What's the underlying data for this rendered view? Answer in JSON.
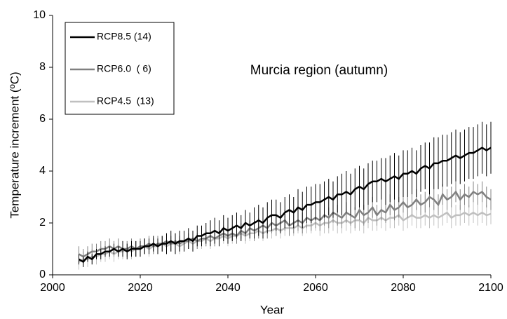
{
  "chart_data": {
    "type": "line",
    "annotation": "Murcia region (autumn)",
    "x_label": "Year",
    "y_label": "Temperature increment (ºC)",
    "xlim": [
      2000,
      2100
    ],
    "xticks": [
      2000,
      2020,
      2040,
      2060,
      2080,
      2100
    ],
    "ylim": [
      0,
      10
    ],
    "yticks": [
      0,
      2,
      4,
      6,
      8,
      10
    ],
    "legend": "top-left",
    "x": [
      2006,
      2007,
      2008,
      2009,
      2010,
      2011,
      2012,
      2013,
      2014,
      2015,
      2016,
      2017,
      2018,
      2019,
      2020,
      2021,
      2022,
      2023,
      2024,
      2025,
      2026,
      2027,
      2028,
      2029,
      2030,
      2031,
      2032,
      2033,
      2034,
      2035,
      2036,
      2037,
      2038,
      2039,
      2040,
      2041,
      2042,
      2043,
      2044,
      2045,
      2046,
      2047,
      2048,
      2049,
      2050,
      2051,
      2052,
      2053,
      2054,
      2055,
      2056,
      2057,
      2058,
      2059,
      2060,
      2061,
      2062,
      2063,
      2064,
      2065,
      2066,
      2067,
      2068,
      2069,
      2070,
      2071,
      2072,
      2073,
      2074,
      2075,
      2076,
      2077,
      2078,
      2079,
      2080,
      2081,
      2082,
      2083,
      2084,
      2085,
      2086,
      2087,
      2088,
      2089,
      2090,
      2091,
      2092,
      2093,
      2094,
      2095,
      2096,
      2097,
      2098,
      2099,
      2100
    ],
    "series": [
      {
        "name": "RCP8.5 (14)",
        "color": "#000000",
        "values": [
          0.6,
          0.5,
          0.7,
          0.6,
          0.8,
          0.8,
          0.9,
          0.9,
          1.0,
          0.9,
          1.0,
          0.9,
          1.0,
          1.0,
          1.0,
          1.1,
          1.1,
          1.2,
          1.1,
          1.2,
          1.2,
          1.3,
          1.2,
          1.3,
          1.3,
          1.4,
          1.3,
          1.5,
          1.5,
          1.6,
          1.6,
          1.7,
          1.6,
          1.8,
          1.7,
          1.8,
          1.9,
          1.8,
          2.0,
          1.9,
          2.0,
          2.1,
          2.0,
          2.2,
          2.3,
          2.3,
          2.2,
          2.4,
          2.5,
          2.4,
          2.6,
          2.5,
          2.7,
          2.7,
          2.8,
          2.8,
          2.9,
          3.0,
          2.9,
          3.1,
          3.1,
          3.2,
          3.1,
          3.3,
          3.4,
          3.3,
          3.5,
          3.6,
          3.6,
          3.7,
          3.6,
          3.7,
          3.8,
          3.7,
          3.9,
          3.9,
          4.0,
          3.9,
          4.1,
          4.2,
          4.1,
          4.3,
          4.3,
          4.4,
          4.4,
          4.5,
          4.6,
          4.5,
          4.6,
          4.7,
          4.7,
          4.8,
          4.9,
          4.8,
          4.9
        ],
        "errors": [
          0.2,
          0.2,
          0.2,
          0.2,
          0.2,
          0.2,
          0.2,
          0.2,
          0.2,
          0.2,
          0.3,
          0.3,
          0.3,
          0.3,
          0.3,
          0.3,
          0.3,
          0.3,
          0.3,
          0.3,
          0.4,
          0.4,
          0.4,
          0.4,
          0.4,
          0.4,
          0.4,
          0.4,
          0.4,
          0.4,
          0.5,
          0.5,
          0.5,
          0.5,
          0.5,
          0.5,
          0.5,
          0.5,
          0.5,
          0.5,
          0.6,
          0.6,
          0.6,
          0.6,
          0.6,
          0.6,
          0.6,
          0.6,
          0.6,
          0.6,
          0.7,
          0.7,
          0.7,
          0.7,
          0.7,
          0.7,
          0.7,
          0.7,
          0.7,
          0.7,
          0.8,
          0.8,
          0.8,
          0.8,
          0.8,
          0.8,
          0.8,
          0.8,
          0.8,
          0.8,
          0.9,
          0.9,
          0.9,
          0.9,
          0.9,
          0.9,
          0.9,
          0.9,
          0.9,
          0.9,
          1.0,
          1.0,
          1.0,
          1.0,
          1.0,
          1.0,
          1.0,
          1.0,
          1.0,
          1.0,
          1.0,
          1.0,
          1.0,
          1.0,
          1.0
        ]
      },
      {
        "name": "RCP6.0  ( 6)",
        "color": "#808080",
        "values": [
          0.8,
          0.7,
          0.8,
          0.9,
          0.9,
          1.0,
          1.0,
          1.1,
          1.0,
          1.1,
          1.0,
          1.0,
          1.1,
          1.0,
          1.1,
          1.1,
          1.2,
          1.1,
          1.2,
          1.2,
          1.3,
          1.2,
          1.3,
          1.2,
          1.3,
          1.3,
          1.4,
          1.3,
          1.4,
          1.4,
          1.5,
          1.4,
          1.5,
          1.6,
          1.5,
          1.6,
          1.5,
          1.7,
          1.6,
          1.8,
          1.7,
          1.8,
          1.9,
          1.8,
          2.0,
          1.9,
          2.0,
          2.1,
          1.9,
          2.0,
          2.1,
          2.0,
          2.2,
          2.1,
          2.2,
          2.1,
          2.3,
          2.2,
          2.4,
          2.3,
          2.2,
          2.4,
          2.3,
          2.2,
          2.5,
          2.3,
          2.4,
          2.6,
          2.3,
          2.5,
          2.4,
          2.7,
          2.5,
          2.6,
          2.8,
          2.6,
          2.7,
          2.9,
          2.7,
          2.8,
          3.0,
          2.9,
          2.7,
          3.1,
          2.9,
          3.0,
          3.2,
          2.9,
          3.1,
          3.0,
          3.2,
          3.1,
          3.2,
          3.0,
          2.9
        ],
        "errors": [
          0.3,
          0.3,
          0.3,
          0.3,
          0.3,
          0.3,
          0.3,
          0.3,
          0.3,
          0.3,
          0.3,
          0.3,
          0.3,
          0.3,
          0.3,
          0.3,
          0.3,
          0.3,
          0.3,
          0.3,
          0.3,
          0.3,
          0.3,
          0.3,
          0.3,
          0.3,
          0.3,
          0.3,
          0.3,
          0.3,
          0.3,
          0.3,
          0.3,
          0.3,
          0.3,
          0.3,
          0.3,
          0.3,
          0.3,
          0.3,
          0.4,
          0.4,
          0.4,
          0.4,
          0.4,
          0.4,
          0.4,
          0.4,
          0.4,
          0.4,
          0.4,
          0.4,
          0.4,
          0.4,
          0.4,
          0.4,
          0.4,
          0.4,
          0.4,
          0.4,
          0.4,
          0.4,
          0.4,
          0.4,
          0.4,
          0.4,
          0.4,
          0.4,
          0.4,
          0.4,
          0.4,
          0.4,
          0.4,
          0.4,
          0.4,
          0.4,
          0.4,
          0.4,
          0.4,
          0.4,
          0.4,
          0.4,
          0.4,
          0.4,
          0.4,
          0.4,
          0.4,
          0.4,
          0.4,
          0.4,
          0.4,
          0.4,
          0.4,
          0.4,
          0.4
        ]
      },
      {
        "name": "RCP4.5  (13)",
        "color": "#c0c0c0",
        "values": [
          0.5,
          0.6,
          0.6,
          0.7,
          0.7,
          0.8,
          0.8,
          0.9,
          0.8,
          0.9,
          0.9,
          1.0,
          0.9,
          1.0,
          1.0,
          1.1,
          1.0,
          1.1,
          1.1,
          1.2,
          1.1,
          1.2,
          1.2,
          1.1,
          1.2,
          1.3,
          1.2,
          1.3,
          1.3,
          1.4,
          1.3,
          1.4,
          1.4,
          1.5,
          1.4,
          1.5,
          1.5,
          1.6,
          1.5,
          1.6,
          1.6,
          1.7,
          1.6,
          1.7,
          1.7,
          1.8,
          1.7,
          1.8,
          1.8,
          1.8,
          1.9,
          1.8,
          1.9,
          1.9,
          2.0,
          1.9,
          2.0,
          2.0,
          2.1,
          2.0,
          2.0,
          2.1,
          2.0,
          2.1,
          2.1,
          2.0,
          2.2,
          2.1,
          2.1,
          2.2,
          2.1,
          2.2,
          2.2,
          2.3,
          2.1,
          2.2,
          2.3,
          2.2,
          2.2,
          2.3,
          2.2,
          2.3,
          2.2,
          2.3,
          2.4,
          2.2,
          2.3,
          2.3,
          2.4,
          2.3,
          2.4,
          2.3,
          2.4,
          2.3,
          2.35
        ],
        "errors": [
          0.3,
          0.3,
          0.3,
          0.3,
          0.3,
          0.3,
          0.3,
          0.3,
          0.3,
          0.3,
          0.3,
          0.3,
          0.3,
          0.3,
          0.3,
          0.3,
          0.3,
          0.3,
          0.3,
          0.3,
          0.3,
          0.3,
          0.3,
          0.3,
          0.3,
          0.3,
          0.3,
          0.3,
          0.3,
          0.3,
          0.3,
          0.3,
          0.3,
          0.3,
          0.3,
          0.3,
          0.3,
          0.3,
          0.3,
          0.3,
          0.3,
          0.3,
          0.3,
          0.3,
          0.3,
          0.3,
          0.3,
          0.3,
          0.3,
          0.3,
          0.3,
          0.3,
          0.3,
          0.3,
          0.3,
          0.4,
          0.4,
          0.4,
          0.4,
          0.4,
          0.4,
          0.4,
          0.4,
          0.4,
          0.4,
          0.4,
          0.4,
          0.4,
          0.4,
          0.4,
          0.4,
          0.4,
          0.4,
          0.4,
          0.4,
          0.4,
          0.4,
          0.4,
          0.4,
          0.4,
          0.4,
          0.4,
          0.4,
          0.4,
          0.4,
          0.4,
          0.4,
          0.4,
          0.4,
          0.4,
          0.4,
          0.4,
          0.4,
          0.4,
          0.4
        ]
      }
    ]
  }
}
